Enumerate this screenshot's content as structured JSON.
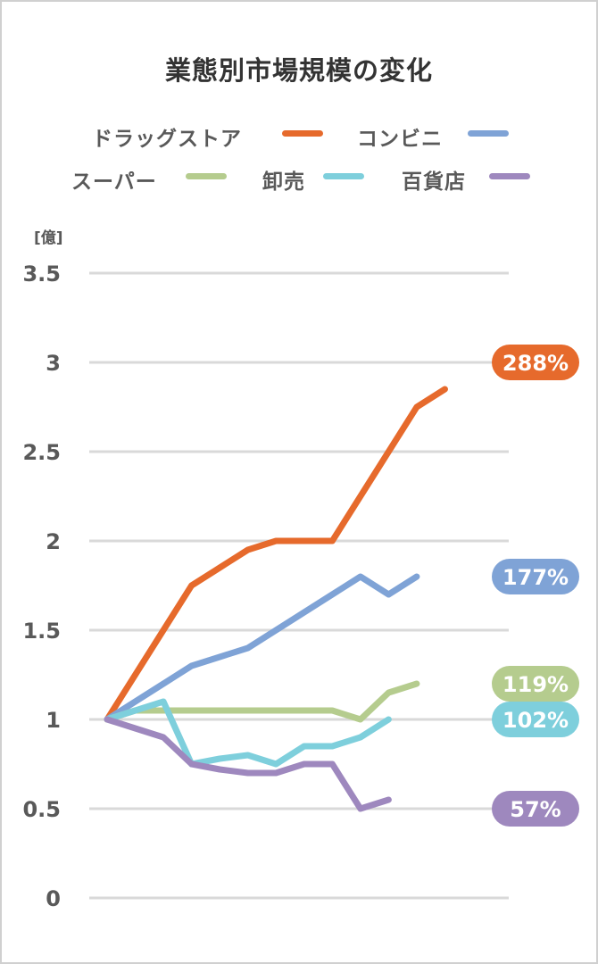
{
  "chart_data": {
    "type": "line",
    "title": "業態別市場規模の変化",
    "ylabel": "[億]",
    "xlabel": "",
    "ylim": [
      0,
      3.5
    ],
    "yticks": [
      "0",
      "0.5",
      "1",
      "1.5",
      "2",
      "2.5",
      "3",
      "3.5"
    ],
    "ytick_values": [
      0,
      0.5,
      1,
      1.5,
      2,
      2.5,
      3,
      3.5
    ],
    "grid": true,
    "legend_position": "top",
    "x": [
      1,
      2,
      3,
      4,
      5,
      6,
      7,
      8,
      9,
      10,
      11,
      12,
      13,
      14
    ],
    "series": [
      {
        "name": "ドラッグストア",
        "color": "#E66A2C",
        "label": "288%",
        "values": [
          1,
          1.25,
          1.5,
          1.75,
          1.85,
          1.95,
          2,
          2,
          2,
          2.25,
          2.5,
          2.75,
          2.85,
          null
        ]
      },
      {
        "name": "コンビニ",
        "color": "#7FA3D6",
        "label": "177%",
        "values": [
          1,
          1.1,
          1.2,
          1.3,
          1.35,
          1.4,
          1.5,
          1.6,
          1.7,
          1.8,
          1.7,
          1.8,
          null,
          null
        ]
      },
      {
        "name": "スーパー",
        "color": "#B5CC8E",
        "label": "119%",
        "values": [
          1,
          1.05,
          1.05,
          1.05,
          1.05,
          1.05,
          1.05,
          1.05,
          1.05,
          1.0,
          1.15,
          1.2,
          null,
          null
        ]
      },
      {
        "name": "卸売",
        "color": "#7ECFDC",
        "label": "102%",
        "values": [
          1,
          1.05,
          1.1,
          0.75,
          0.78,
          0.8,
          0.75,
          0.85,
          0.85,
          0.9,
          1.0,
          null,
          null,
          null
        ]
      },
      {
        "name": "百貨店",
        "color": "#9E88BE",
        "label": "57%",
        "values": [
          1,
          0.95,
          0.9,
          0.75,
          0.72,
          0.7,
          0.7,
          0.75,
          0.75,
          0.5,
          0.55,
          null,
          null,
          null
        ]
      }
    ]
  },
  "legend": [
    {
      "label": "ドラッグストア",
      "color": "#E66A2C"
    },
    {
      "label": "コンビニ",
      "color": "#7FA3D6"
    },
    {
      "label": "スーパー",
      "color": "#B5CC8E"
    },
    {
      "label": "卸売",
      "color": "#7ECFDC"
    },
    {
      "label": "百貨店",
      "color": "#9E88BE"
    }
  ]
}
